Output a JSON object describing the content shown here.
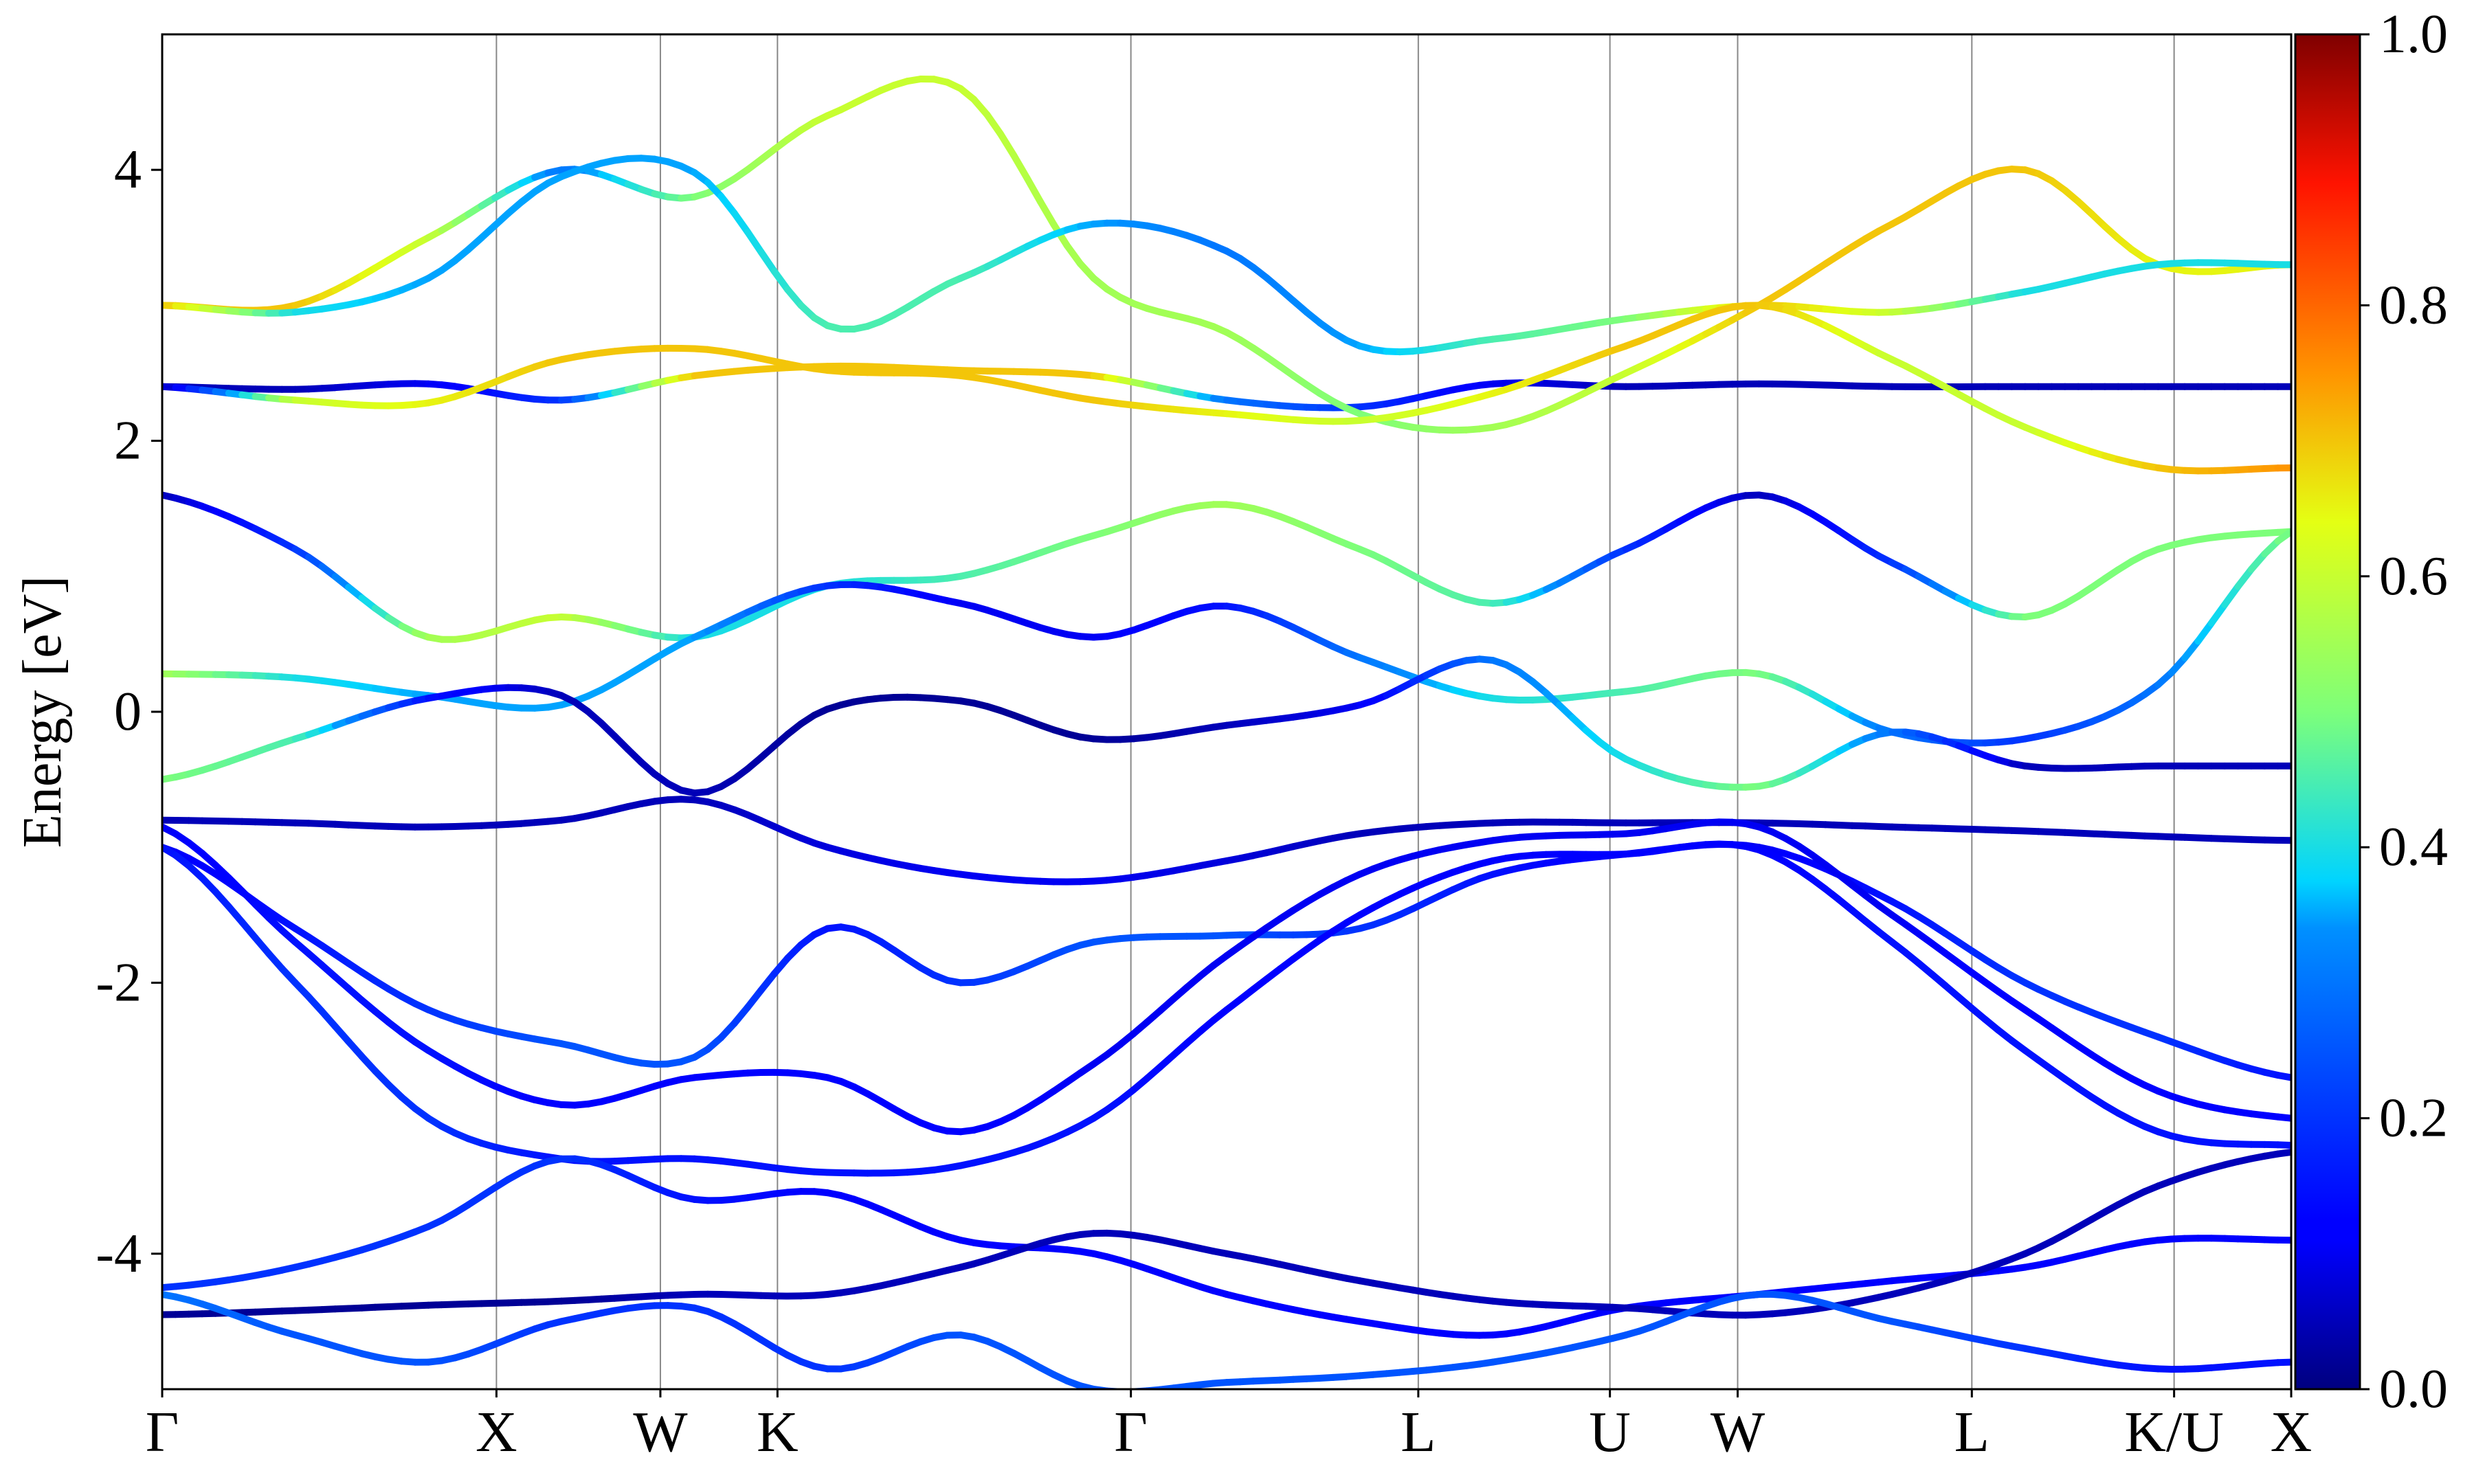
{
  "chart_data": {
    "type": "line",
    "title": "",
    "xlabel": "",
    "ylabel": "Energy [eV]",
    "ylim": [
      -5,
      5
    ],
    "grid": "vertical lines at high-symmetry points",
    "y_ticks": [
      {
        "value": 4,
        "label": "4"
      },
      {
        "value": 2,
        "label": "2"
      },
      {
        "value": 0,
        "label": "0"
      },
      {
        "value": -2,
        "label": "-2"
      },
      {
        "value": -4,
        "label": "-4"
      }
    ],
    "k_path": {
      "positions": [
        0,
        0.157,
        0.234,
        0.289,
        0.455,
        0.59,
        0.68,
        0.74,
        0.85,
        0.945,
        1.0
      ],
      "labels": [
        "Γ",
        "X",
        "W",
        "K",
        "Γ",
        "L",
        "U",
        "W",
        "L",
        "K/U",
        "X"
      ]
    },
    "colorbar": {
      "min": 0.0,
      "max": 1.0,
      "colormap": "jet",
      "ticks": [
        {
          "value": 0.0,
          "label": "0.0"
        },
        {
          "value": 0.2,
          "label": "0.2"
        },
        {
          "value": 0.4,
          "label": "0.4"
        },
        {
          "value": 0.6,
          "label": "0.6"
        },
        {
          "value": 0.8,
          "label": "0.8"
        },
        {
          "value": 1.0,
          "label": "1.0"
        }
      ]
    },
    "series": [
      {
        "values": [
          2.4,
          2.38,
          2.42,
          2.3,
          2.48,
          2.55,
          2.52,
          2.48,
          2.3,
          2.25,
          2.42,
          2.4,
          2.42,
          2.4,
          2.4,
          2.4,
          2.4
        ],
        "weights": [
          0.05,
          0.05,
          0.1,
          0.2,
          0.7,
          0.7,
          0.7,
          0.7,
          0.3,
          0.2,
          0.1,
          0.05,
          0.05,
          0.05,
          0.05,
          0.05,
          0.05
        ]
      },
      {
        "values": [
          3.0,
          3.0,
          3.5,
          4.0,
          3.8,
          4.4,
          4.6,
          3.2,
          2.8,
          2.2,
          2.1,
          2.5,
          3.0,
          3.6,
          4.0,
          3.3,
          3.3
        ],
        "weights": [
          0.7,
          0.7,
          0.6,
          0.3,
          0.5,
          0.6,
          0.6,
          0.55,
          0.55,
          0.5,
          0.55,
          0.6,
          0.7,
          0.7,
          0.7,
          0.65,
          0.65
        ]
      },
      {
        "values": [
          3.0,
          2.95,
          3.2,
          3.95,
          3.98,
          2.85,
          3.2,
          3.6,
          3.4,
          2.7,
          2.75,
          2.9,
          3.0,
          2.95,
          3.1,
          3.3,
          3.3
        ],
        "weights": [
          0.7,
          0.4,
          0.35,
          0.35,
          0.35,
          0.45,
          0.45,
          0.35,
          0.3,
          0.35,
          0.45,
          0.5,
          0.7,
          0.6,
          0.4,
          0.4,
          0.4
        ]
      },
      {
        "values": [
          2.4,
          2.3,
          2.28,
          2.6,
          2.68,
          2.52,
          2.48,
          2.3,
          2.2,
          2.15,
          2.35,
          2.7,
          3.0,
          2.6,
          2.1,
          1.8,
          1.8
        ],
        "weights": [
          0.05,
          0.6,
          0.65,
          0.7,
          0.7,
          0.7,
          0.7,
          0.7,
          0.65,
          0.6,
          0.65,
          0.7,
          0.7,
          0.6,
          0.6,
          0.7,
          0.75
        ]
      },
      {
        "values": [
          1.6,
          1.2,
          0.55,
          0.7,
          0.55,
          0.93,
          1.0,
          1.3,
          1.53,
          1.2,
          0.8,
          1.2,
          1.6,
          1.1,
          0.7,
          1.2,
          1.33
        ],
        "weights": [
          0.05,
          0.2,
          0.55,
          0.6,
          0.4,
          0.4,
          0.45,
          0.5,
          0.55,
          0.5,
          0.45,
          0.2,
          0.05,
          0.2,
          0.5,
          0.5,
          0.5
        ]
      },
      {
        "values": [
          0.28,
          0.25,
          0.12,
          0.05,
          0.55,
          0.93,
          0.8,
          0.55,
          0.78,
          0.4,
          0.1,
          0.15,
          0.28,
          -0.15,
          -0.2,
          0.2,
          1.33
        ],
        "weights": [
          0.55,
          0.4,
          0.35,
          0.35,
          0.35,
          0.2,
          0.1,
          0.1,
          0.15,
          0.3,
          0.4,
          0.45,
          0.5,
          0.3,
          0.2,
          0.3,
          0.5
        ]
      },
      {
        "values": [
          -0.5,
          -0.2,
          0.1,
          0.12,
          -0.6,
          0.02,
          0.08,
          -0.2,
          -0.1,
          0.05,
          0.38,
          -0.35,
          -0.55,
          -0.15,
          -0.4,
          -0.4,
          -0.4
        ],
        "weights": [
          0.5,
          0.45,
          0.15,
          0.05,
          0.05,
          0.02,
          0.02,
          0.02,
          0.05,
          0.1,
          0.3,
          0.4,
          0.5,
          0.3,
          0.05,
          0.05,
          0.05
        ]
      },
      {
        "values": [
          -0.8,
          -0.82,
          -0.85,
          -0.8,
          -0.65,
          -1.0,
          -1.2,
          -1.25,
          -1.1,
          -0.9,
          -0.82,
          -0.82,
          -0.82,
          -0.85,
          -0.88,
          -0.92,
          -0.95
        ],
        "weights": [
          0.05,
          0.05,
          0.05,
          0.05,
          0.05,
          0.08,
          0.1,
          0.1,
          0.08,
          0.05,
          0.05,
          0.05,
          0.05,
          0.05,
          0.05,
          0.05,
          0.05
        ]
      },
      {
        "values": [
          -1.0,
          -1.6,
          -2.2,
          -2.45,
          -2.55,
          -1.6,
          -2.0,
          -1.7,
          -1.65,
          -1.6,
          -1.2,
          -1.05,
          -1.0,
          -1.4,
          -2.0,
          -2.4,
          -2.7
        ],
        "weights": [
          0.1,
          0.15,
          0.2,
          0.25,
          0.25,
          0.15,
          0.2,
          0.25,
          0.25,
          0.2,
          0.15,
          0.1,
          0.1,
          0.15,
          0.2,
          0.2,
          0.15
        ]
      },
      {
        "values": [
          -0.85,
          -1.7,
          -2.5,
          -2.9,
          -2.7,
          -2.7,
          -3.1,
          -2.6,
          -1.8,
          -1.2,
          -0.95,
          -0.9,
          -0.85,
          -1.5,
          -2.2,
          -2.8,
          -3.0
        ],
        "weights": [
          0.1,
          0.15,
          0.15,
          0.12,
          0.12,
          0.12,
          0.12,
          0.1,
          0.1,
          0.1,
          0.1,
          0.1,
          0.1,
          0.1,
          0.12,
          0.12,
          0.12
        ]
      },
      {
        "values": [
          -1.0,
          -2.0,
          -3.0,
          -3.3,
          -3.3,
          -3.4,
          -3.35,
          -3.0,
          -2.2,
          -1.5,
          -1.1,
          -1.05,
          -1.02,
          -1.7,
          -2.5,
          -3.1,
          -3.2
        ],
        "weights": [
          0.15,
          0.2,
          0.2,
          0.15,
          0.15,
          0.15,
          0.15,
          0.15,
          0.12,
          0.12,
          0.12,
          0.12,
          0.12,
          0.15,
          0.15,
          0.15,
          0.15
        ]
      },
      {
        "values": [
          -4.25,
          -4.1,
          -3.8,
          -3.3,
          -3.6,
          -3.55,
          -3.9,
          -4.0,
          -4.3,
          -4.5,
          -4.6,
          -4.4,
          -4.3,
          -4.2,
          -4.1,
          -3.9,
          -3.9
        ],
        "weights": [
          0.2,
          0.2,
          0.2,
          0.2,
          0.15,
          0.12,
          0.12,
          0.12,
          0.12,
          0.12,
          0.12,
          0.12,
          0.12,
          0.12,
          0.12,
          0.12,
          0.12
        ]
      },
      {
        "values": [
          -4.45,
          -4.42,
          -4.38,
          -4.35,
          -4.3,
          -4.3,
          -4.1,
          -3.85,
          -4.0,
          -4.2,
          -4.35,
          -4.4,
          -4.45,
          -4.3,
          -4.0,
          -3.5,
          -3.25
        ],
        "weights": [
          0.02,
          0.02,
          0.02,
          0.02,
          0.05,
          0.05,
          0.05,
          0.05,
          0.05,
          0.05,
          0.05,
          0.05,
          0.05,
          0.05,
          0.05,
          0.05,
          0.05
        ]
      },
      {
        "values": [
          -4.3,
          -4.6,
          -4.8,
          -4.5,
          -4.4,
          -4.85,
          -4.6,
          -5.0,
          -4.95,
          -4.9,
          -4.8,
          -4.6,
          -4.3,
          -4.5,
          -4.7,
          -4.85,
          -4.8
        ],
        "weights": [
          0.3,
          0.25,
          0.25,
          0.2,
          0.2,
          0.2,
          0.25,
          0.25,
          0.25,
          0.25,
          0.25,
          0.25,
          0.25,
          0.25,
          0.2,
          0.15,
          0.15
        ]
      }
    ]
  }
}
